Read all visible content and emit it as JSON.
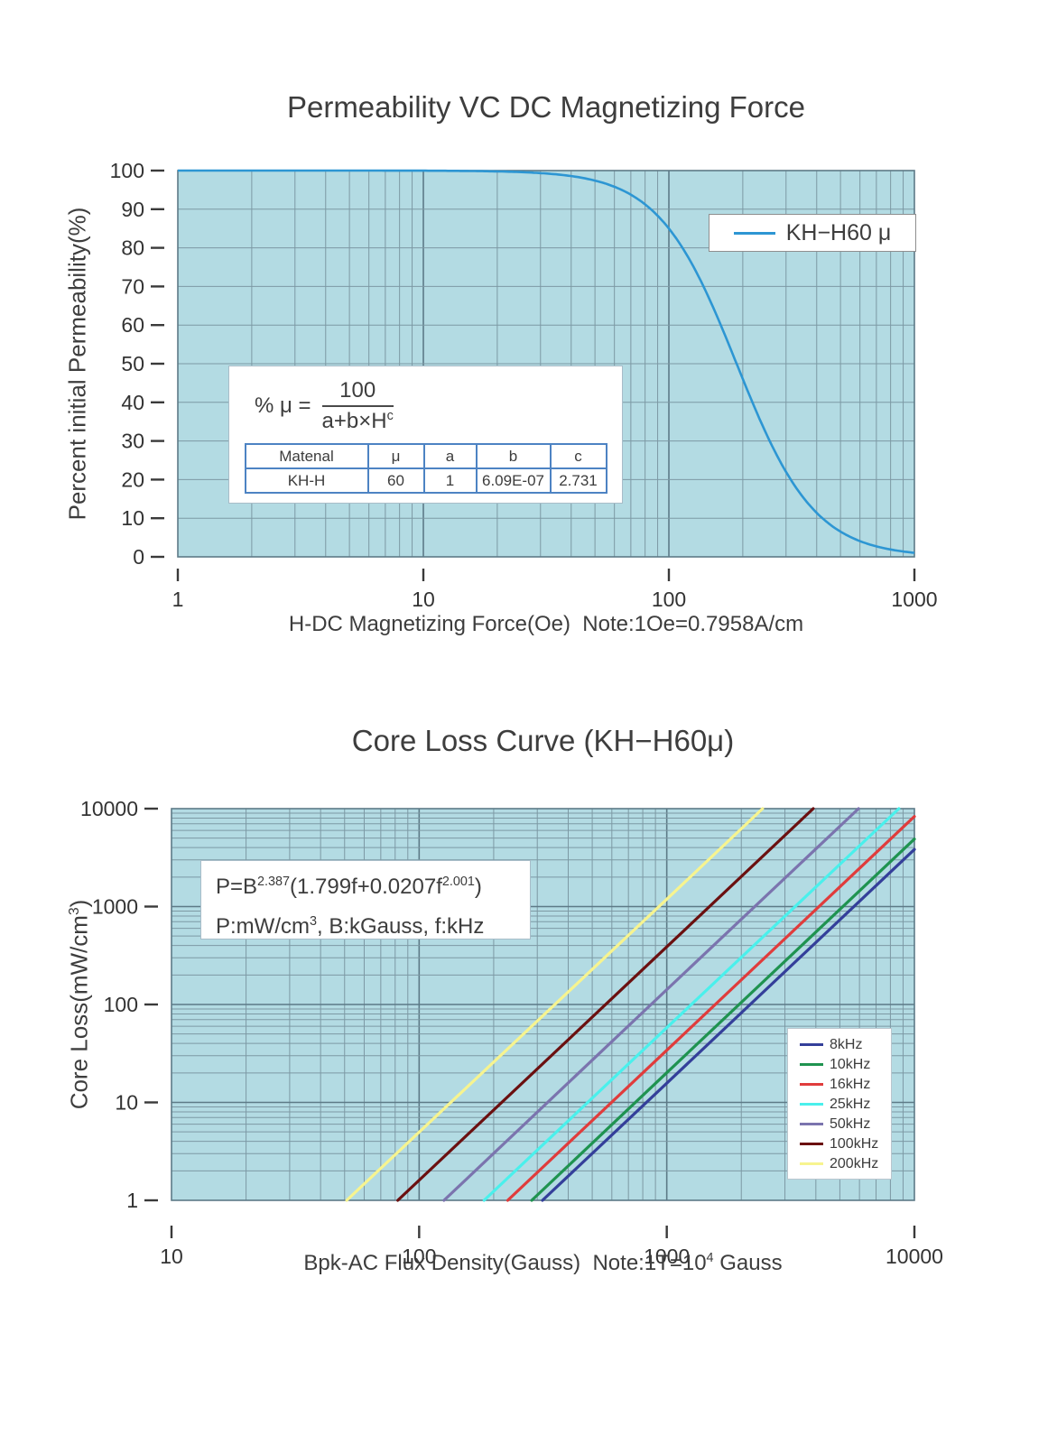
{
  "page": {
    "background": "#ffffff"
  },
  "chart1": {
    "title": "Permeability VC DC Magnetizing Force",
    "ylabel": "Percent initial Permeability(%)",
    "xlabel": "H-DC Magnetizing Force(Oe)  Note:1Oe=0.7958A/cm",
    "legend_label": "KH−H60 μ",
    "formula": {
      "lhs": "% μ  =",
      "numerator": "100",
      "denominator_parts": [
        {
          "t": "a+b×H"
        },
        {
          "t": "c",
          "sup": true
        }
      ]
    },
    "table": {
      "headers": [
        "Matenal",
        "μ",
        "a",
        "b",
        "c"
      ],
      "row": [
        "KH-H",
        "60",
        "1",
        "6.09E-07",
        "2.731"
      ]
    }
  },
  "chart2": {
    "title": "Core Loss Curve (KH−H60μ)",
    "ylabel_parts": [
      {
        "t": "Core Loss(mW/cm"
      },
      {
        "t": "3",
        "sup": true
      },
      {
        "t": ")"
      }
    ],
    "xlabel_parts": [
      {
        "t": "Bpk-AC Flux Density(Gauss)  Note:1T=10"
      },
      {
        "t": "4",
        "sup": true
      },
      {
        "t": " Gauss"
      }
    ],
    "formula_line1_parts": [
      {
        "t": "P=B"
      },
      {
        "t": "2.387",
        "sup": true
      },
      {
        "t": "(1.799f+0.0207f"
      },
      {
        "t": "2.001",
        "sup": true
      },
      {
        "t": ")"
      }
    ],
    "formula_line2_parts": [
      {
        "t": "P:mW/cm"
      },
      {
        "t": "3",
        "sup": true
      },
      {
        "t": ", B:kGauss, f:kHz"
      }
    ]
  },
  "chart_data": [
    {
      "type": "line",
      "title": "Permeability VC DC Magnetizing Force",
      "xlabel": "H-DC Magnetizing Force(Oe)",
      "ylabel": "Percent initial Permeability(%)",
      "xscale": "log",
      "yscale": "linear",
      "xlim": [
        1,
        1000
      ],
      "ylim": [
        0,
        100
      ],
      "x_ticks": [
        1,
        10,
        100,
        1000
      ],
      "y_ticks": [
        0,
        10,
        20,
        30,
        40,
        50,
        60,
        70,
        80,
        90,
        100
      ],
      "grid": true,
      "plot_bg": "#b3dbe3",
      "grid_color": "#7d99a4",
      "grid_major_color": "#5d7a87",
      "legend_position": "upper-right",
      "series": [
        {
          "name": "KH−H60 μ",
          "color": "#2d96d3",
          "model": {
            "formula": "%μ = 100/(a+b×H^c)",
            "a": 1,
            "b": 6.09e-07,
            "c": 2.731
          },
          "points": [
            [
              1,
              100
            ],
            [
              2,
              100
            ],
            [
              5,
              100
            ],
            [
              10,
              99.97
            ],
            [
              20,
              99.8
            ],
            [
              30,
              99.3
            ],
            [
              50,
              97.4
            ],
            [
              70,
              93.8
            ],
            [
              100,
              85.0
            ],
            [
              150,
              65.1
            ],
            [
              200,
              46.0
            ],
            [
              300,
              22.0
            ],
            [
              400,
              11.4
            ],
            [
              500,
              6.6
            ],
            [
              700,
              2.7
            ],
            [
              1000,
              1.0
            ]
          ]
        }
      ]
    },
    {
      "type": "line",
      "title": "Core Loss Curve (KH−H60μ)",
      "xlabel": "Bpk-AC Flux Density(Gauss)",
      "ylabel": "Core Loss(mW/cm³)",
      "xscale": "log",
      "yscale": "log",
      "xlim": [
        10,
        10000
      ],
      "ylim": [
        1,
        10000
      ],
      "x_ticks": [
        10,
        100,
        1000,
        10000
      ],
      "y_ticks": [
        1,
        10,
        100,
        1000,
        10000
      ],
      "grid": true,
      "plot_bg": "#b3dbe3",
      "grid_color": "#7d99a4",
      "grid_major_color": "#5d7a87",
      "legend_position": "lower-right",
      "model": {
        "formula": "P=B^2.387(1.799f+0.0207f^2.001)",
        "B_exponent": 2.387,
        "f_coeff": 1.799,
        "f2_coeff": 0.0207,
        "f2_exponent": 2.001,
        "units": "P:mW/cm³, B:kGauss, f:kHz"
      },
      "series": [
        {
          "name": "8kHz",
          "f_kHz": 8,
          "color": "#343f9a",
          "points": [
            [
              315,
              1
            ],
            [
              1000,
              15.7
            ],
            [
              10000,
              3834
            ]
          ]
        },
        {
          "name": "10kHz",
          "f_kHz": 10,
          "color": "#1f9350",
          "points": [
            [
              285,
              1
            ],
            [
              1000,
              20.1
            ],
            [
              10000,
              4892
            ]
          ]
        },
        {
          "name": "16kHz",
          "f_kHz": 16,
          "color": "#e03c3c",
          "points": [
            [
              228,
              1
            ],
            [
              1000,
              34.1
            ],
            [
              10000,
              8317
            ]
          ]
        },
        {
          "name": "25kHz",
          "f_kHz": 25,
          "color": "#4af0ec",
          "points": [
            [
              183,
              1
            ],
            [
              1000,
              57.9
            ],
            [
              8653,
              10000
            ]
          ]
        },
        {
          "name": "50kHz",
          "f_kHz": 50,
          "color": "#7b74ae",
          "points": [
            [
              126,
              1
            ],
            [
              1000,
              141.9
            ],
            [
              5946,
              10000
            ]
          ]
        },
        {
          "name": "100kHz",
          "f_kHz": 100,
          "color": "#6b1010",
          "points": [
            [
              82,
              1
            ],
            [
              1000,
              387.9
            ],
            [
              3902,
              10000
            ]
          ]
        },
        {
          "name": "200kHz",
          "f_kHz": 200,
          "color": "#f7f48f",
          "points": [
            [
              51,
              1
            ],
            [
              1000,
              1191
            ],
            [
              2438,
              10000
            ]
          ]
        }
      ]
    }
  ]
}
